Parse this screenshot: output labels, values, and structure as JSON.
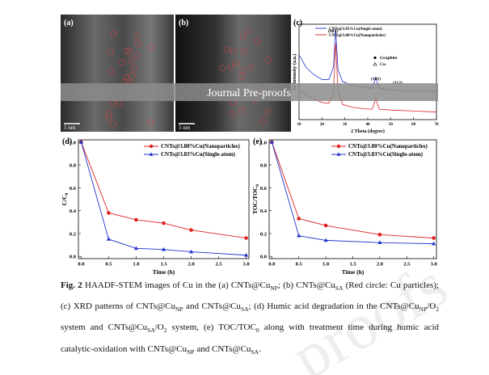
{
  "figure": {
    "panels": {
      "a": {
        "label": "(a)",
        "scale": "5 nm"
      },
      "b": {
        "label": "(b)",
        "scale": "5 nm"
      },
      "c": {
        "label": "(c)",
        "type": "line",
        "xlabel": "2 Theta (degree)",
        "ylabel": "ve Intensity (a.u.)",
        "xlim": [
          10,
          70
        ],
        "xticks": [
          10,
          20,
          30,
          40,
          50,
          60,
          70
        ],
        "ylim": [
          0,
          100
        ],
        "x": [
          10,
          13,
          16,
          20,
          23,
          25,
          26,
          27,
          29,
          33,
          40,
          42,
          43.5,
          45,
          50,
          60,
          70
        ],
        "series": [
          {
            "name": "CNTs@3.83%Cu(Single-atom)",
            "color": "#2233cc",
            "values": [
              68,
              55,
              48,
              42,
              42,
              55,
              95,
              52,
              40,
              36,
              33,
              33,
              44,
              33,
              31,
              30,
              30
            ]
          },
          {
            "name": "CNTs@3.80%Cu(Nanoparticles)",
            "color": "#dd2222",
            "values": [
              32,
              26,
              22,
              18,
              17,
              28,
              80,
              30,
              16,
              13,
              11,
              11,
              22,
              11,
              10,
              9,
              8
            ]
          }
        ],
        "annotations": [
          "(002)",
          "(101)",
          "(112)"
        ],
        "phases": [
          "Graphite",
          "Cu"
        ]
      },
      "d": {
        "label": "(d)",
        "type": "line",
        "xlabel": "Time (h)",
        "ylabel": "C/C",
        "ylabel_sub": "0",
        "xlim": [
          -0.05,
          3.05
        ],
        "ylim": [
          -0.02,
          1.02
        ],
        "xticks": [
          {
            "value": 0,
            "label": "0.0"
          },
          {
            "value": 0.5,
            "label": "0.5"
          },
          {
            "value": 1,
            "label": "1.0"
          },
          {
            "value": 1.5,
            "label": "1.5"
          },
          {
            "value": 2,
            "label": "2.0"
          },
          {
            "value": 2.5,
            "label": "2.5"
          },
          {
            "value": 3,
            "label": "3.0"
          }
        ],
        "yticks": [
          {
            "value": 0,
            "label": "0.0"
          },
          {
            "value": 0.2,
            "label": "0.2"
          },
          {
            "value": 0.4,
            "label": "0.4"
          },
          {
            "value": 0.6,
            "label": "0.6"
          },
          {
            "value": 0.8,
            "label": "0.8"
          },
          {
            "value": 1,
            "label": "1.0"
          }
        ],
        "x": [
          0,
          0.5,
          1,
          1.5,
          2,
          3
        ],
        "series": [
          {
            "name": "CNTs@3.80%Cu(Nanoparticles)",
            "color": "#dd2222",
            "marker": "circle",
            "values": [
              1.0,
              0.38,
              0.32,
              0.29,
              0.23,
              0.16
            ]
          },
          {
            "name": "CNTs@3.83%Cu(Single-atom)",
            "color": "#2233cc",
            "marker": "triangle",
            "values": [
              1.0,
              0.15,
              0.07,
              0.06,
              0.04,
              0.01
            ]
          }
        ]
      },
      "e": {
        "label": "(e)",
        "type": "line",
        "xlabel": "Time (h)",
        "ylabel": "TOC/TOC",
        "ylabel_sub": "0",
        "xlim": [
          -0.05,
          3.05
        ],
        "ylim": [
          -0.02,
          1.02
        ],
        "xticks": [
          {
            "value": 0,
            "label": "0.0"
          },
          {
            "value": 0.5,
            "label": "0.5"
          },
          {
            "value": 1,
            "label": "1.0"
          },
          {
            "value": 1.5,
            "label": "1.5"
          },
          {
            "value": 2,
            "label": "2.0"
          },
          {
            "value": 2.5,
            "label": "2.5"
          },
          {
            "value": 3,
            "label": "3.0"
          }
        ],
        "yticks": [
          {
            "value": 0,
            "label": "0.0"
          },
          {
            "value": 0.2,
            "label": "0.2"
          },
          {
            "value": 0.4,
            "label": "0.4"
          },
          {
            "value": 0.6,
            "label": "0.6"
          },
          {
            "value": 0.8,
            "label": "0.8"
          },
          {
            "value": 1,
            "label": "1.0"
          }
        ],
        "x": [
          0,
          0.5,
          1,
          2,
          3
        ],
        "series": [
          {
            "name": "CNTs@3.80%Cu(Nanoparticles)",
            "color": "#dd2222",
            "marker": "circle",
            "values": [
              1.0,
              0.33,
              0.27,
              0.19,
              0.16
            ]
          },
          {
            "name": "CNTs@3.83%Cu(Single-atom)",
            "color": "#2233cc",
            "marker": "triangle",
            "values": [
              1.0,
              0.18,
              0.14,
              0.12,
              0.11
            ]
          }
        ]
      }
    }
  },
  "banner": "Journal Pre-proofs",
  "watermark": "proofs",
  "caption": {
    "label": "Fig. 2",
    "parts": [
      " HAADF-STEM images of Cu in the (a) CNTs@Cu",
      "; (b) CNTs@Cu",
      " (Red circle: Cu particles); (c) XRD patterns of CNTs@Cu",
      " and CNTs@Cu",
      "; (d) Humic acid degradation in the CNTs@Cu",
      "/O",
      " system and CNTs@Cu",
      "/O",
      " system, (e) TOC/TOC",
      " along with treatment time during humic acid catalytic-oxidation with CNTs@Cu",
      " and CNTs@Cu",
      "."
    ],
    "subs": [
      "NP",
      "SA",
      "NP",
      "SA",
      "NP",
      "2",
      "SA",
      "2",
      "0",
      "NP",
      "SA"
    ]
  }
}
